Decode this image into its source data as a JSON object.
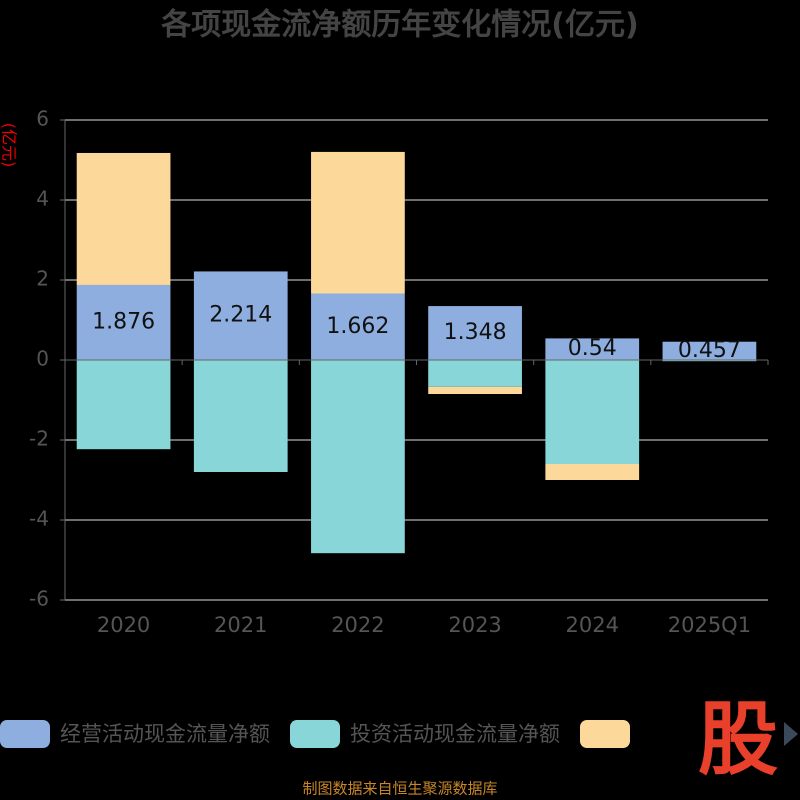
{
  "chart_data": {
    "type": "bar",
    "stacked": true,
    "title": "各项现金流净额历年变化情况(亿元)",
    "y_label": "(亿元)",
    "source": "制图数据来自恒生聚源数据库",
    "logo": "股",
    "categories": [
      "2020",
      "2021",
      "2022",
      "2023",
      "2024",
      "2025Q1"
    ],
    "series": [
      {
        "name": "经营活动现金流量净额",
        "color": "#8eaee0",
        "values": [
          1.876,
          2.214,
          1.662,
          1.348,
          0.54,
          0.457
        ],
        "labels": true
      },
      {
        "name": "投资活动现金流量净额",
        "color": "#88d6d8",
        "values": [
          -2.23,
          -2.8,
          -4.83,
          -0.67,
          -2.6,
          -0.03
        ]
      },
      {
        "color": "#fdd89b",
        "values": [
          3.3,
          0,
          3.54,
          -0.18,
          -0.4,
          0
        ]
      }
    ],
    "ylim": [
      -6,
      6
    ],
    "yticks": [
      -6,
      -4,
      -2,
      0,
      2,
      4,
      6
    ],
    "grid": true
  }
}
